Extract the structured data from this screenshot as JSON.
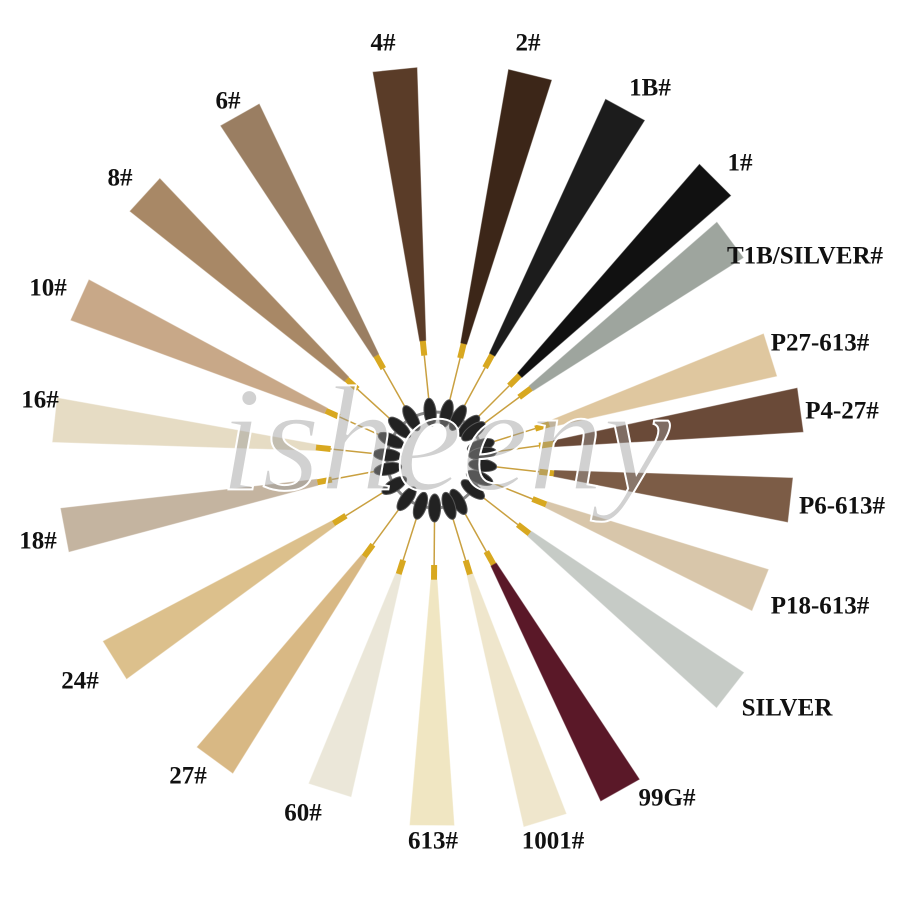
{
  "watermark": "isheeny",
  "swatches": [
    {
      "label": "4#",
      "color": "#5a3c28"
    },
    {
      "label": "2#",
      "color": "#3c2618"
    },
    {
      "label": "1B#",
      "color": "#1c1c1c"
    },
    {
      "label": "1#",
      "color": "#111111"
    },
    {
      "label": "T1B/SILVER#",
      "color": "#9ea59e"
    },
    {
      "label": "P27-613#",
      "color": "#dfc79f"
    },
    {
      "label": "P4-27#",
      "color": "#6a4a38"
    },
    {
      "label": "P6-613#",
      "color": "#7c5c46"
    },
    {
      "label": "P18-613#",
      "color": "#d8c6aa"
    },
    {
      "label": "SILVER",
      "color": "#c6cbc6"
    },
    {
      "label": "99G#",
      "color": "#5a1828"
    },
    {
      "label": "1001#",
      "color": "#efe6cc"
    },
    {
      "label": "613#",
      "color": "#f0e6c2"
    },
    {
      "label": "60#",
      "color": "#ebe7d9"
    },
    {
      "label": "27#",
      "color": "#d8b884"
    },
    {
      "label": "24#",
      "color": "#dcc08c"
    },
    {
      "label": "18#",
      "color": "#c4b4a0"
    },
    {
      "label": "16#",
      "color": "#e6dcc4"
    },
    {
      "label": "10#",
      "color": "#c8a888"
    },
    {
      "label": "8#",
      "color": "#a88866"
    },
    {
      "label": "6#",
      "color": "#9a7e62"
    }
  ]
}
